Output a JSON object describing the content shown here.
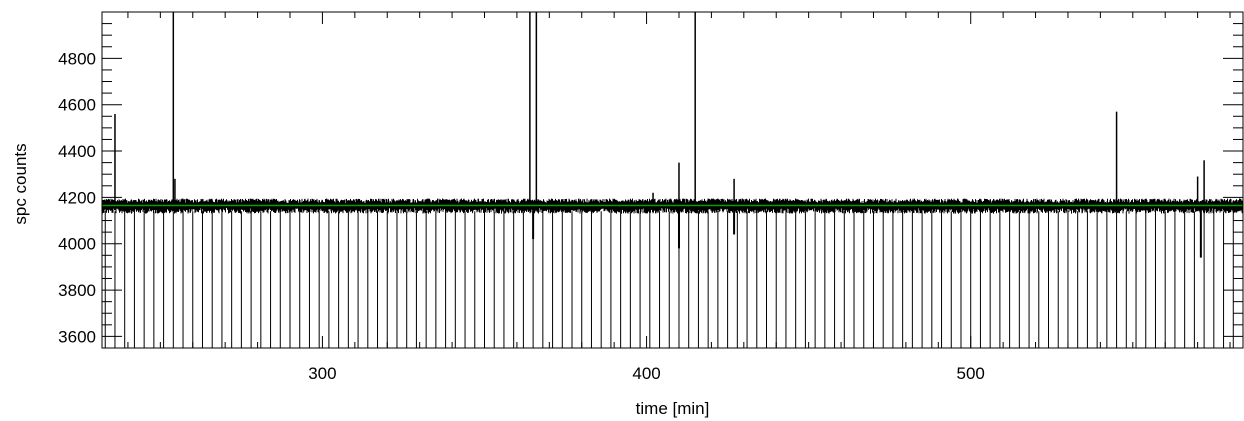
{
  "chart_data": {
    "type": "line",
    "xlabel": "time [min]",
    "ylabel": "spc counts",
    "xlim": [
      232,
      584
    ],
    "ylim": [
      3550,
      5000
    ],
    "x_ticks": [
      300,
      400,
      500
    ],
    "y_ticks": [
      3600,
      3800,
      4000,
      4200,
      4400,
      4600,
      4800
    ],
    "x_minor_step": 10,
    "y_minor_step": 50,
    "grid": false,
    "legend": "none",
    "baseline_level": 4165,
    "noise_amplitude": 25,
    "dip_start": 233,
    "dip_period": 3.0,
    "dip_level": 3550,
    "spikes": [
      {
        "x": 236,
        "y": 4560
      },
      {
        "x": 254,
        "y": 5000
      },
      {
        "x": 254.5,
        "y": 4280
      },
      {
        "x": 364,
        "y": 5000
      },
      {
        "x": 366,
        "y": 5000
      },
      {
        "x": 402,
        "y": 4220
      },
      {
        "x": 410,
        "y": 4350
      },
      {
        "x": 415,
        "y": 5000
      },
      {
        "x": 427,
        "y": 4280
      },
      {
        "x": 545,
        "y": 4570
      },
      {
        "x": 572,
        "y": 4360
      },
      {
        "x": 570,
        "y": 4290
      }
    ],
    "negative_spikes": [
      {
        "x": 365,
        "y": 4020
      },
      {
        "x": 410,
        "y": 3980
      },
      {
        "x": 427,
        "y": 4040
      },
      {
        "x": 571,
        "y": 3940
      }
    ],
    "series_colors": {
      "data": "#000000",
      "fit": "#00a000"
    }
  }
}
